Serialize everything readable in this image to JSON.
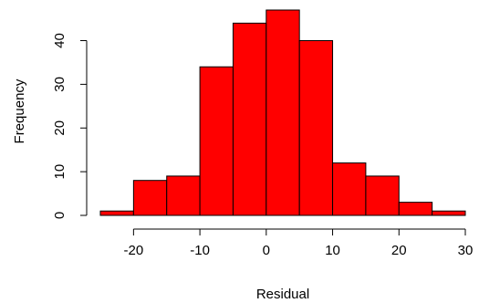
{
  "chart_data": {
    "type": "bar",
    "subtype": "histogram",
    "xlabel": "Residual",
    "ylabel": "Frequency",
    "bins": [
      {
        "from": -25,
        "to": -20,
        "count": 1
      },
      {
        "from": -20,
        "to": -15,
        "count": 8
      },
      {
        "from": -15,
        "to": -10,
        "count": 9
      },
      {
        "from": -10,
        "to": -5,
        "count": 34
      },
      {
        "from": -5,
        "to": 0,
        "count": 44
      },
      {
        "from": 0,
        "to": 5,
        "count": 47
      },
      {
        "from": 5,
        "to": 10,
        "count": 40
      },
      {
        "from": 10,
        "to": 15,
        "count": 12
      },
      {
        "from": 15,
        "to": 20,
        "count": 9
      },
      {
        "from": 20,
        "to": 25,
        "count": 3
      },
      {
        "from": 25,
        "to": 30,
        "count": 1
      }
    ],
    "xticks": [
      "-20",
      "-10",
      "0",
      "10",
      "20",
      "30"
    ],
    "yticks": [
      "0",
      "10",
      "20",
      "30",
      "40"
    ],
    "xlim": [
      -25,
      30
    ],
    "ylim": [
      0,
      47
    ],
    "grid": false,
    "legend": "none",
    "bar_color": "#ff0000",
    "edge_color": "#000000"
  }
}
